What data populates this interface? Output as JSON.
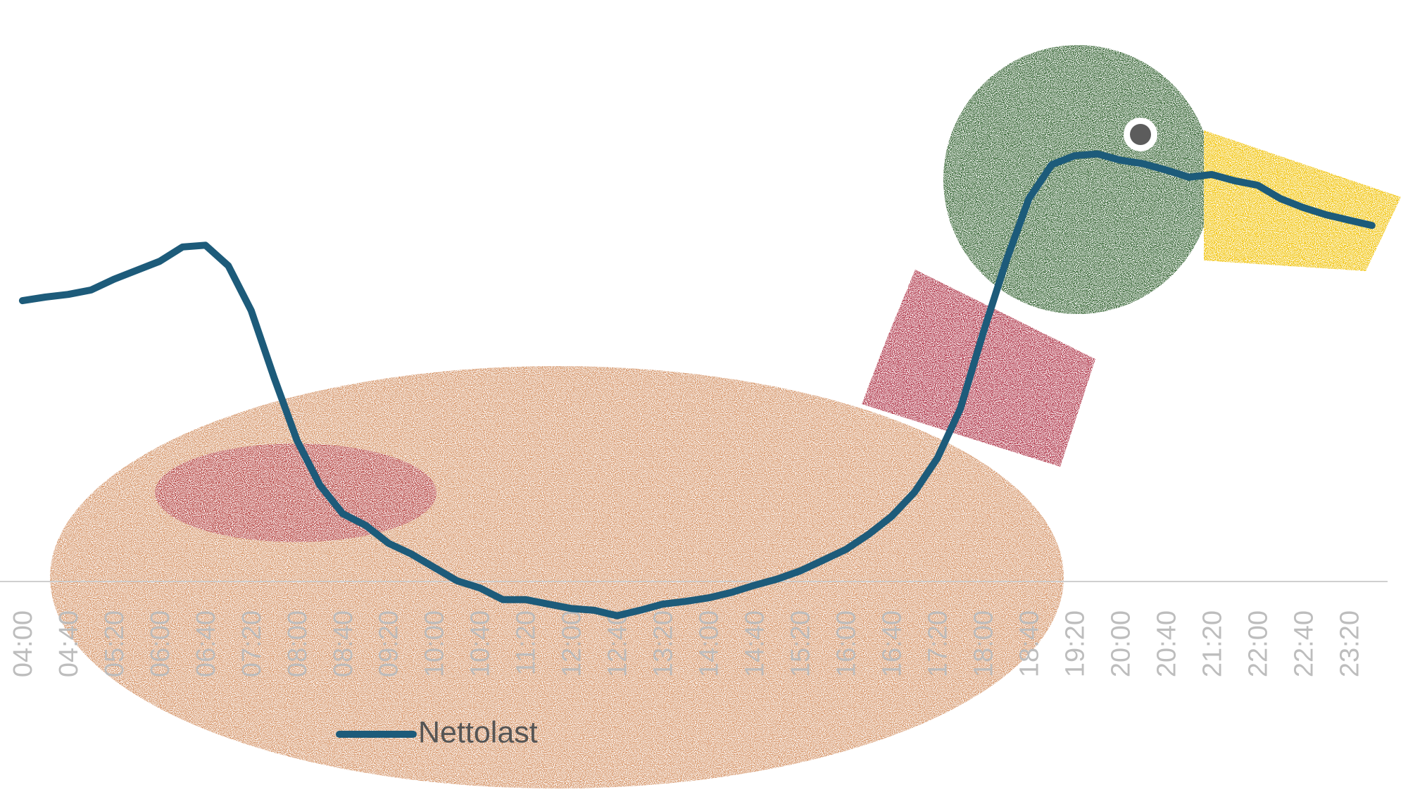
{
  "chart_data": {
    "type": "line",
    "categories": [
      "04:00",
      null,
      "04:40",
      null,
      "05:20",
      null,
      "06:00",
      null,
      "06:40",
      null,
      "07:20",
      null,
      "08:00",
      null,
      "08:40",
      null,
      "09:20",
      null,
      "10:00",
      null,
      "10:40",
      null,
      "11:20",
      null,
      "12:00",
      null,
      "12:40",
      null,
      "13:20",
      null,
      "14:00",
      null,
      "14:40",
      null,
      "15:20",
      null,
      "16:00",
      null,
      "16:40",
      null,
      "17:20",
      null,
      "18:00",
      null,
      "18:40",
      null,
      "19:20",
      null,
      "20:00",
      null,
      "20:40",
      null,
      "21:20",
      null,
      "22:00",
      null,
      "22:40",
      null,
      "23:20",
      null
    ],
    "series": [
      {
        "name": "Nettolast",
        "color": "#1d5b7a",
        "values": [
          62.8,
          63.6,
          64.2,
          65.2,
          67.6,
          69.6,
          71.6,
          74.8,
          75.2,
          70.6,
          60.6,
          45.6,
          31.6,
          21.6,
          15.2,
          12.6,
          8.6,
          6.2,
          3.2,
          0.2,
          -1.4,
          -4,
          -4,
          -5,
          -6,
          -6.4,
          -7.6,
          -6.4,
          -5,
          -4.4,
          -3.6,
          -2.4,
          -0.8,
          0.6,
          2.4,
          4.8,
          7.2,
          10.6,
          14.6,
          20,
          27.6,
          38.6,
          55.6,
          71.6,
          85.6,
          93.2,
          95.2,
          95.6,
          94.2,
          93.4,
          92,
          90.4,
          91,
          89.6,
          88.6,
          85.6,
          83.6,
          82,
          80.8,
          79.6
        ]
      }
    ],
    "ylim": [
      -47,
      130
    ]
  }
}
